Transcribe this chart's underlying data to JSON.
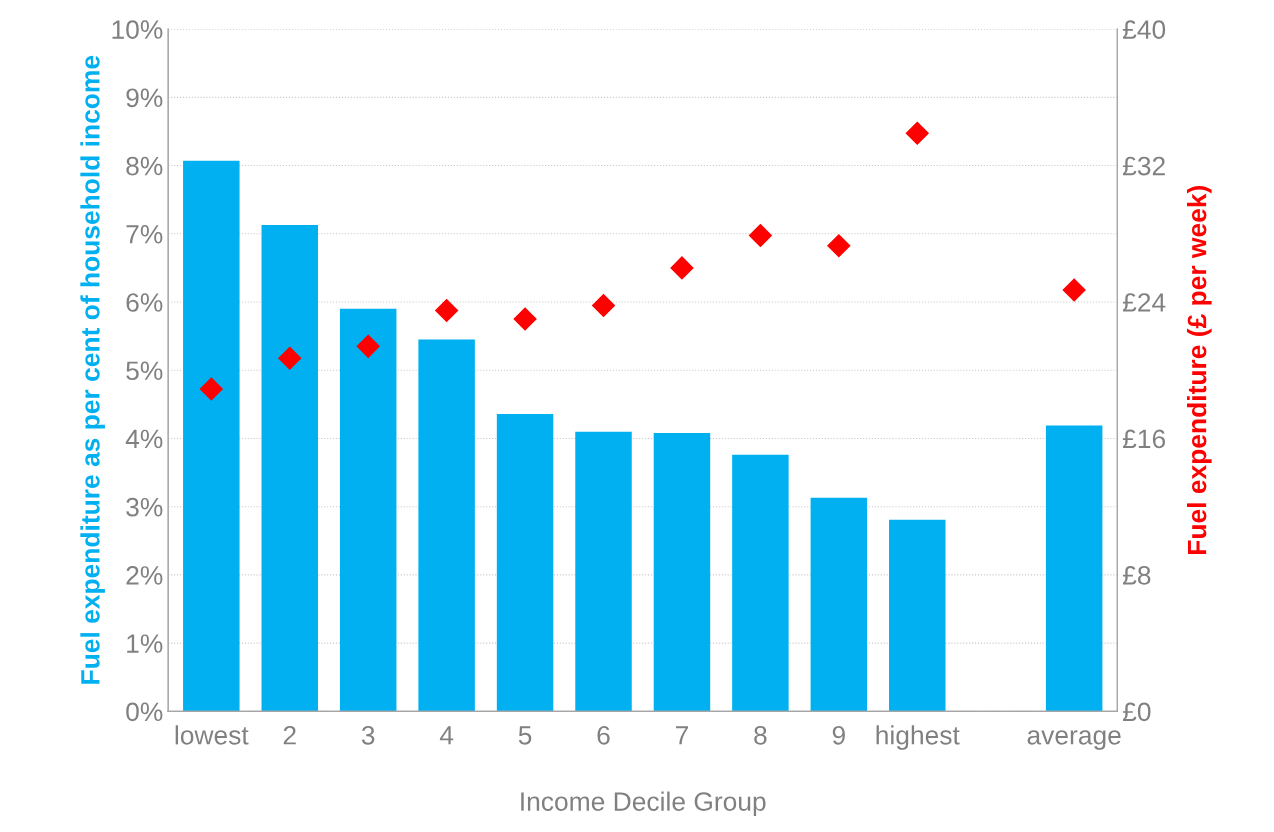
{
  "chart_data": {
    "type": "bar",
    "xlabel": "Income Decile Group",
    "ylabel": "Fuel expenditure as per cent of household income",
    "y2label": "Fuel expenditure (£ per week)",
    "categories": [
      "lowest",
      "2",
      "3",
      "4",
      "5",
      "6",
      "7",
      "8",
      "9",
      "highest",
      null,
      "average"
    ],
    "series": [
      {
        "color": "#00b0f0",
        "values": [
          8.07,
          7.13,
          5.9,
          5.45,
          4.36,
          4.1,
          4.08,
          3.76,
          3.13,
          2.81,
          null,
          4.19
        ]
      },
      {
        "type": "scatter",
        "axis": "y2",
        "marker": "diamond",
        "color": "#ff0000",
        "values": [
          18.9,
          20.7,
          21.4,
          23.5,
          23.0,
          23.8,
          26.0,
          27.9,
          27.3,
          33.9,
          null,
          24.7
        ]
      }
    ],
    "ylim": [
      0,
      10
    ],
    "yticks": [
      {
        "value": 0,
        "label": "0%"
      },
      {
        "value": 1,
        "label": "1%"
      },
      {
        "value": 2,
        "label": "2%"
      },
      {
        "value": 3,
        "label": "3%"
      },
      {
        "value": 4,
        "label": "4%"
      },
      {
        "value": 5,
        "label": "5%"
      },
      {
        "value": 6,
        "label": "6%"
      },
      {
        "value": 7,
        "label": "7%"
      },
      {
        "value": 8,
        "label": "8%"
      },
      {
        "value": 9,
        "label": "9%"
      },
      {
        "value": 10,
        "label": "10%"
      }
    ],
    "y2lim": [
      0,
      40
    ],
    "y2ticks": [
      {
        "value": 0,
        "label": "£0"
      },
      {
        "value": 8,
        "label": "£8"
      },
      {
        "value": 16,
        "label": "£16"
      },
      {
        "value": 24,
        "label": "£24"
      },
      {
        "value": 32,
        "label": "£32"
      },
      {
        "value": 40,
        "label": "£40"
      }
    ],
    "grid": "y",
    "legend": false
  }
}
